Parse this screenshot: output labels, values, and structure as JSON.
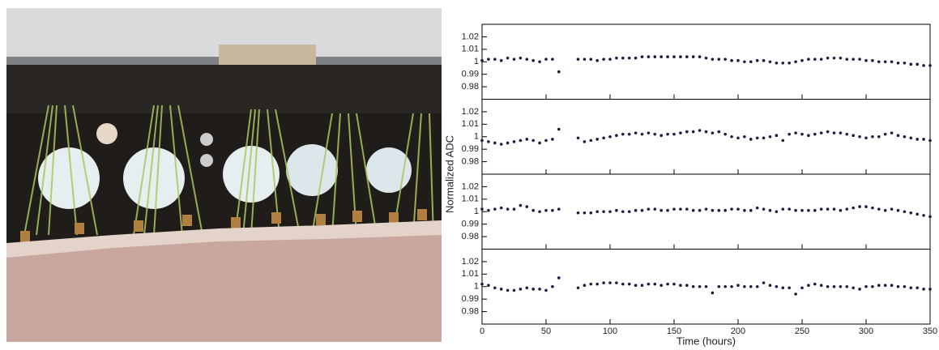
{
  "chart_data": {
    "type": "scatter",
    "xlabel": "Time (hours)",
    "ylabel": "Normalized ADC",
    "xlim": [
      0,
      350
    ],
    "xticks": [
      0,
      50,
      100,
      150,
      200,
      250,
      300,
      350
    ],
    "ylim": [
      0.97,
      1.03
    ],
    "yticks": [
      0.98,
      0.99,
      1,
      1.01,
      1.02
    ],
    "x": [
      0,
      5,
      10,
      15,
      20,
      25,
      30,
      35,
      40,
      45,
      50,
      55,
      60,
      75,
      80,
      85,
      90,
      95,
      100,
      105,
      110,
      115,
      120,
      125,
      130,
      135,
      140,
      145,
      150,
      155,
      160,
      165,
      170,
      175,
      180,
      185,
      190,
      195,
      200,
      205,
      210,
      215,
      220,
      225,
      230,
      235,
      240,
      245,
      250,
      255,
      260,
      265,
      270,
      275,
      280,
      285,
      290,
      295,
      300,
      305,
      310,
      315,
      320,
      325,
      330,
      335,
      340,
      345,
      350
    ],
    "series": [
      {
        "color": "#1a1a40",
        "values": [
          1.001,
          1.002,
          1.002,
          1.001,
          1.003,
          1.002,
          1.003,
          1.002,
          1.001,
          1.0,
          1.002,
          1.002,
          0.992,
          1.002,
          1.002,
          1.002,
          1.001,
          1.002,
          1.002,
          1.003,
          1.003,
          1.003,
          1.003,
          1.004,
          1.004,
          1.004,
          1.004,
          1.004,
          1.004,
          1.004,
          1.004,
          1.004,
          1.004,
          1.003,
          1.002,
          1.002,
          1.002,
          1.001,
          1.001,
          1.0,
          1.0,
          1.001,
          1.001,
          1.0,
          0.999,
          0.999,
          0.999,
          1.0,
          1.001,
          1.002,
          1.002,
          1.002,
          1.003,
          1.003,
          1.003,
          1.002,
          1.002,
          1.002,
          1.001,
          1.001,
          1.0,
          1.0,
          1.0,
          0.999,
          0.999,
          0.998,
          0.998,
          0.997,
          0.997
        ]
      },
      {
        "color": "#1a1a40",
        "values": [
          0.997,
          0.996,
          0.995,
          0.994,
          0.995,
          0.996,
          0.997,
          0.998,
          0.997,
          0.995,
          0.997,
          0.998,
          1.006,
          0.999,
          0.996,
          0.997,
          0.998,
          0.999,
          1.0,
          1.001,
          1.002,
          1.002,
          1.003,
          1.002,
          1.003,
          1.002,
          1.001,
          1.002,
          1.002,
          1.003,
          1.004,
          1.004,
          1.005,
          1.004,
          1.003,
          1.004,
          1.002,
          1.0,
          0.999,
          1.0,
          0.998,
          0.999,
          0.999,
          1.0,
          1.001,
          0.997,
          1.002,
          1.003,
          1.002,
          1.001,
          1.002,
          1.003,
          1.004,
          1.003,
          1.003,
          1.002,
          1.001,
          1.0,
          0.999,
          1.0,
          1.0,
          1.002,
          1.003,
          1.001,
          1.0,
          0.999,
          0.998,
          0.998,
          0.997
        ]
      },
      {
        "color": "#1a1a40",
        "values": [
          1.002,
          1.001,
          1.002,
          1.003,
          1.002,
          1.002,
          1.005,
          1.004,
          1.001,
          1.0,
          1.001,
          1.001,
          1.002,
          0.999,
          0.999,
          0.999,
          1.0,
          1.0,
          1.0,
          1.001,
          1.0,
          1.0,
          1.001,
          1.001,
          1.002,
          1.002,
          1.001,
          1.001,
          1.002,
          1.002,
          1.002,
          1.001,
          1.001,
          1.002,
          1.001,
          1.001,
          1.001,
          1.002,
          1.002,
          1.001,
          1.001,
          1.003,
          1.002,
          1.001,
          1.0,
          1.002,
          1.002,
          1.001,
          1.001,
          1.001,
          1.001,
          1.002,
          1.002,
          1.002,
          1.001,
          1.002,
          1.003,
          1.004,
          1.004,
          1.003,
          1.002,
          1.001,
          1.002,
          1.001,
          1.0,
          0.999,
          0.998,
          0.997,
          0.996
        ]
      },
      {
        "color": "#1a1a40",
        "values": [
          1.002,
          1.001,
          0.999,
          0.998,
          0.997,
          0.997,
          0.998,
          0.999,
          0.998,
          0.998,
          0.997,
          1.0,
          1.007,
          0.999,
          1.001,
          1.002,
          1.002,
          1.003,
          1.003,
          1.003,
          1.002,
          1.002,
          1.001,
          1.001,
          1.002,
          1.002,
          1.001,
          1.002,
          1.002,
          1.001,
          1.001,
          1.0,
          1.0,
          1.0,
          0.995,
          1.0,
          1.0,
          1.0,
          1.001,
          1.0,
          1.0,
          1.0,
          1.003,
          1.001,
          1.0,
          0.999,
          0.999,
          0.994,
          0.999,
          1.001,
          1.002,
          1.001,
          1.0,
          1.0,
          1.0,
          1.0,
          0.999,
          0.998,
          1.0,
          1.0,
          1.001,
          1.001,
          1.001,
          1.0,
          1.0,
          0.999,
          0.999,
          0.998,
          0.998
        ]
      }
    ]
  }
}
